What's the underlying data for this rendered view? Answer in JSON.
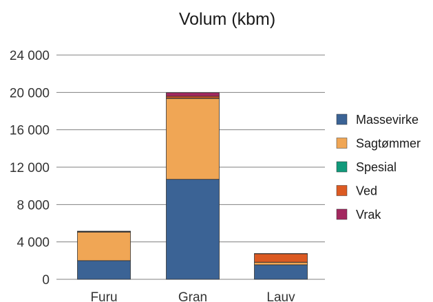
{
  "chart_data": {
    "type": "bar",
    "stacked": true,
    "title": "Volum (kbm)",
    "xlabel": "",
    "ylabel": "",
    "categories": [
      "Furu",
      "Gran",
      "Lauv"
    ],
    "series": [
      {
        "name": "Massevirke",
        "color": "#3b6395",
        "values": [
          2000,
          10700,
          1550
        ]
      },
      {
        "name": "Sagtømmer",
        "color": "#f0a655",
        "values": [
          3050,
          8650,
          270
        ]
      },
      {
        "name": "Spesial",
        "color": "#119a7b",
        "values": [
          60,
          40,
          10
        ]
      },
      {
        "name": "Ved",
        "color": "#dc5a22",
        "values": [
          20,
          200,
          900
        ]
      },
      {
        "name": "Vrak",
        "color": "#a3285f",
        "values": [
          20,
          380,
          30
        ]
      }
    ],
    "ylim": [
      0,
      24000
    ],
    "yticks": [
      0,
      4000,
      8000,
      12000,
      16000,
      20000,
      24000
    ],
    "ytick_labels": [
      "0",
      "4 000",
      "8 000",
      "12 000",
      "16 000",
      "20 000",
      "24 000"
    ],
    "grid": true,
    "legend_position": "right"
  }
}
